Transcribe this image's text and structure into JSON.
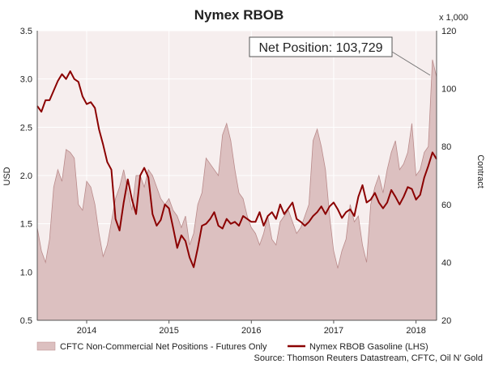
{
  "chart_data": {
    "type": "area",
    "title": "Nymex RBOB",
    "left_axis": {
      "label": "USD",
      "ticks": [
        "3.5",
        "3.0",
        "2.5",
        "2.0",
        "1.5",
        "1.0",
        "0.5"
      ],
      "min": 0.5,
      "max": 3.5
    },
    "right_axis": {
      "label": "Contract",
      "multiplier": "x 1,000",
      "ticks": [
        "120",
        "100",
        "80",
        "60",
        "40",
        "20"
      ],
      "min": 20,
      "max": 120
    },
    "x_axis": {
      "ticks": [
        "2014",
        "2015",
        "2016",
        "2017",
        "2018"
      ],
      "tick_values": [
        2014.0,
        2015.0,
        2016.0,
        2017.0,
        2018.0
      ],
      "min": 2013.4,
      "max": 2018.25
    },
    "grid": true,
    "legend_position": "bottom",
    "annotation": "Net Position: 103,729",
    "source": "Source: Thomson Reuters Datastream, CFTC, Oil N' Gold",
    "series": [
      {
        "name": "CFTC Non-Commercial Net Positions - Futures Only",
        "axis": "right",
        "kind": "area",
        "color": "#dcc0c0",
        "edge": "#b98a8a",
        "x": [
          2013.4,
          2013.45,
          2013.5,
          2013.55,
          2013.6,
          2013.65,
          2013.7,
          2013.75,
          2013.8,
          2013.85,
          2013.9,
          2013.95,
          2014.0,
          2014.05,
          2014.1,
          2014.15,
          2014.2,
          2014.25,
          2014.3,
          2014.35,
          2014.4,
          2014.45,
          2014.5,
          2014.55,
          2014.6,
          2014.65,
          2014.7,
          2014.75,
          2014.8,
          2014.85,
          2014.9,
          2014.95,
          2015.0,
          2015.05,
          2015.1,
          2015.15,
          2015.2,
          2015.25,
          2015.3,
          2015.35,
          2015.4,
          2015.45,
          2015.5,
          2015.55,
          2015.6,
          2015.65,
          2015.7,
          2015.75,
          2015.8,
          2015.85,
          2015.9,
          2015.95,
          2016.0,
          2016.05,
          2016.1,
          2016.15,
          2016.2,
          2016.25,
          2016.3,
          2016.35,
          2016.4,
          2016.45,
          2016.5,
          2016.55,
          2016.6,
          2016.65,
          2016.7,
          2016.75,
          2016.8,
          2016.85,
          2016.9,
          2016.95,
          2017.0,
          2017.05,
          2017.1,
          2017.15,
          2017.2,
          2017.25,
          2017.3,
          2017.35,
          2017.4,
          2017.45,
          2017.5,
          2017.55,
          2017.6,
          2017.65,
          2017.7,
          2017.75,
          2017.8,
          2017.85,
          2017.9,
          2017.95,
          2018.0,
          2018.05,
          2018.1,
          2018.15,
          2018.2,
          2018.25
        ],
        "values": [
          52,
          44,
          40,
          48,
          66,
          72,
          68,
          79,
          78,
          76,
          60,
          58,
          68,
          66,
          60,
          50,
          42,
          46,
          54,
          62,
          66,
          72,
          65,
          58,
          70,
          70,
          66,
          72,
          70,
          66,
          62,
          60,
          62,
          58,
          56,
          52,
          56,
          46,
          50,
          60,
          64,
          76,
          74,
          72,
          70,
          84,
          88,
          82,
          72,
          64,
          62,
          56,
          52,
          50,
          46,
          50,
          56,
          48,
          46,
          54,
          56,
          58,
          54,
          50,
          52,
          56,
          60,
          82,
          86,
          80,
          72,
          56,
          44,
          38,
          44,
          48,
          60,
          54,
          56,
          46,
          40,
          60,
          66,
          70,
          64,
          72,
          78,
          82,
          72,
          74,
          78,
          88,
          70,
          72,
          78,
          80,
          110,
          104
        ]
      },
      {
        "name": "Nymex RBOB Gasoline (LHS)",
        "axis": "left",
        "kind": "line",
        "color": "#8b0000",
        "x": [
          2013.4,
          2013.45,
          2013.5,
          2013.55,
          2013.6,
          2013.65,
          2013.7,
          2013.75,
          2013.8,
          2013.85,
          2013.9,
          2013.95,
          2014.0,
          2014.05,
          2014.1,
          2014.15,
          2014.2,
          2014.25,
          2014.3,
          2014.35,
          2014.4,
          2014.45,
          2014.5,
          2014.55,
          2014.6,
          2014.65,
          2014.7,
          2014.75,
          2014.8,
          2014.85,
          2014.9,
          2014.95,
          2015.0,
          2015.05,
          2015.1,
          2015.15,
          2015.2,
          2015.25,
          2015.3,
          2015.35,
          2015.4,
          2015.45,
          2015.5,
          2015.55,
          2015.6,
          2015.65,
          2015.7,
          2015.75,
          2015.8,
          2015.85,
          2015.9,
          2015.95,
          2016.0,
          2016.05,
          2016.1,
          2016.15,
          2016.2,
          2016.25,
          2016.3,
          2016.35,
          2016.4,
          2016.45,
          2016.5,
          2016.55,
          2016.6,
          2016.65,
          2016.7,
          2016.75,
          2016.8,
          2016.85,
          2016.9,
          2016.95,
          2017.0,
          2017.05,
          2017.1,
          2017.15,
          2017.2,
          2017.25,
          2017.3,
          2017.35,
          2017.4,
          2017.45,
          2017.5,
          2017.55,
          2017.6,
          2017.65,
          2017.7,
          2017.75,
          2017.8,
          2017.85,
          2017.9,
          2017.95,
          2018.0,
          2018.05,
          2018.1,
          2018.15,
          2018.2,
          2018.25
        ],
        "values": [
          2.72,
          2.66,
          2.78,
          2.78,
          2.88,
          2.98,
          3.05,
          3.0,
          3.08,
          3.0,
          2.97,
          2.82,
          2.74,
          2.76,
          2.7,
          2.48,
          2.32,
          2.14,
          2.06,
          1.55,
          1.43,
          1.72,
          1.96,
          1.75,
          1.6,
          2.0,
          2.08,
          1.98,
          1.6,
          1.48,
          1.54,
          1.7,
          1.66,
          1.46,
          1.25,
          1.38,
          1.32,
          1.15,
          1.05,
          1.25,
          1.48,
          1.5,
          1.55,
          1.62,
          1.48,
          1.45,
          1.55,
          1.5,
          1.52,
          1.48,
          1.58,
          1.55,
          1.52,
          1.52,
          1.62,
          1.48,
          1.58,
          1.62,
          1.55,
          1.7,
          1.6,
          1.66,
          1.72,
          1.55,
          1.52,
          1.48,
          1.52,
          1.58,
          1.62,
          1.68,
          1.6,
          1.68,
          1.72,
          1.65,
          1.56,
          1.62,
          1.65,
          1.58,
          1.78,
          1.9,
          1.72,
          1.75,
          1.82,
          1.72,
          1.66,
          1.72,
          1.85,
          1.78,
          1.7,
          1.78,
          1.88,
          1.86,
          1.75,
          1.8,
          1.98,
          2.1,
          2.24,
          2.17
        ]
      }
    ]
  }
}
